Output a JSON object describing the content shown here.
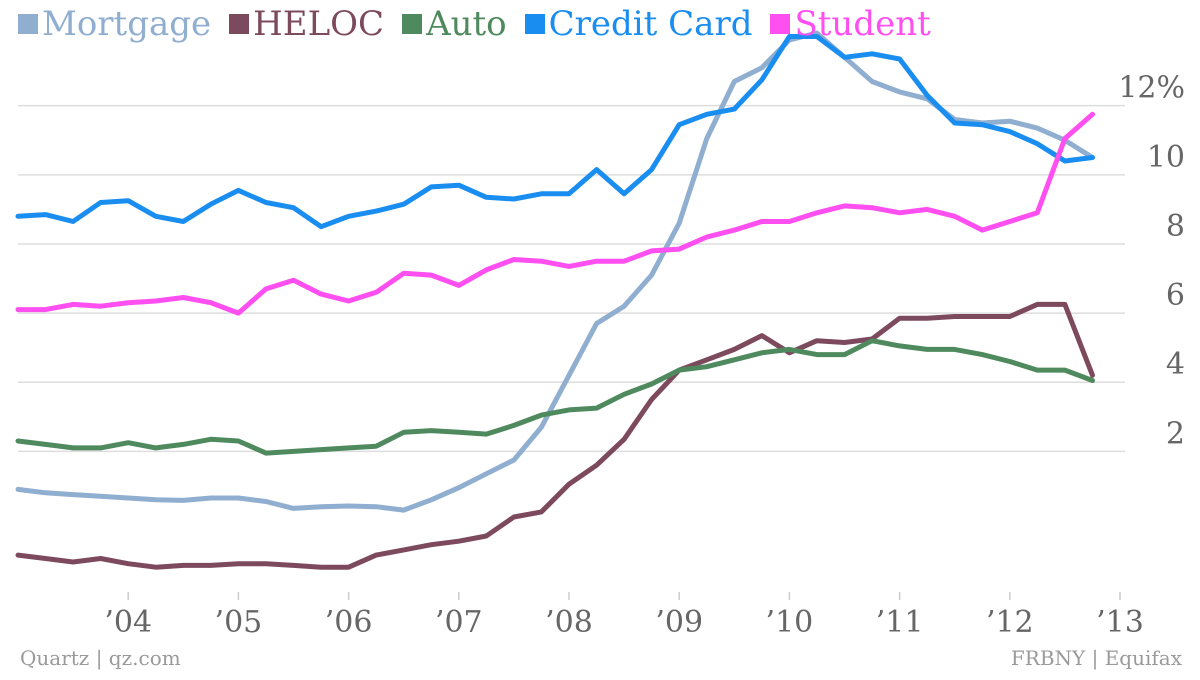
{
  "colors": {
    "mortgage": "#8faed0",
    "heloc": "#7d4a5d",
    "auto": "#4e8a5e",
    "credit_card": "#1a8ef0",
    "student": "#ff4ff0",
    "grid": "#dddddd",
    "axis_text": "#666666",
    "footer_text": "#9a9a9a"
  },
  "legend": [
    {
      "key": "mortgage",
      "label": "Mortgage"
    },
    {
      "key": "heloc",
      "label": "HELOC"
    },
    {
      "key": "auto",
      "label": "Auto"
    },
    {
      "key": "credit_card",
      "label": "Credit Card"
    },
    {
      "key": "student",
      "label": "Student"
    }
  ],
  "footer": {
    "left": "Quartz | qz.com",
    "right": "FRBNY | Equifax"
  },
  "chart_data": {
    "type": "line",
    "title": "",
    "xlabel": "",
    "ylabel": "",
    "ylim": [
      -2.3,
      13.9
    ],
    "xlim": [
      2003.0,
      2013.6
    ],
    "grid": true,
    "legend_position": "top-left",
    "y_ticks": [
      {
        "value": 2,
        "label": "2"
      },
      {
        "value": 4,
        "label": "4"
      },
      {
        "value": 6,
        "label": "6"
      },
      {
        "value": 8,
        "label": "8"
      },
      {
        "value": 10,
        "label": "10"
      },
      {
        "value": 12,
        "label": "12%"
      }
    ],
    "x_ticks": [
      {
        "value": 2004,
        "label": "’04"
      },
      {
        "value": 2005,
        "label": "’05"
      },
      {
        "value": 2006,
        "label": "’06"
      },
      {
        "value": 2007,
        "label": "’07"
      },
      {
        "value": 2008,
        "label": "’08"
      },
      {
        "value": 2009,
        "label": "’09"
      },
      {
        "value": 2010,
        "label": "’10"
      },
      {
        "value": 2011,
        "label": "’11"
      },
      {
        "value": 2012,
        "label": "’12"
      },
      {
        "value": 2013,
        "label": "’13"
      }
    ],
    "x": [
      2003.0,
      2003.25,
      2003.5,
      2003.75,
      2004.0,
      2004.25,
      2004.5,
      2004.75,
      2005.0,
      2005.25,
      2005.5,
      2005.75,
      2006.0,
      2006.25,
      2006.5,
      2006.75,
      2007.0,
      2007.25,
      2007.5,
      2007.75,
      2008.0,
      2008.25,
      2008.5,
      2008.75,
      2009.0,
      2009.25,
      2009.5,
      2009.75,
      2010.0,
      2010.25,
      2010.5,
      2010.75,
      2011.0,
      2011.25,
      2011.5,
      2011.75,
      2012.0,
      2012.25,
      2012.5,
      2012.75
    ],
    "series": [
      {
        "key": "mortgage",
        "name": "Mortgage",
        "values": [
          0.9,
          0.8,
          0.75,
          0.7,
          0.65,
          0.6,
          0.58,
          0.65,
          0.65,
          0.55,
          0.35,
          0.4,
          0.42,
          0.4,
          0.3,
          0.6,
          0.95,
          1.35,
          1.75,
          2.7,
          4.2,
          5.7,
          6.2,
          7.1,
          8.6,
          11.05,
          12.7,
          13.1,
          13.9,
          14.1,
          13.4,
          12.7,
          12.4,
          12.2,
          11.6,
          11.5,
          11.55,
          11.35,
          11.0,
          10.5
        ]
      },
      {
        "key": "heloc",
        "name": "HELOC",
        "values": [
          -1.0,
          -1.1,
          -1.2,
          -1.1,
          -1.25,
          -1.35,
          -1.3,
          -1.3,
          -1.25,
          -1.25,
          -1.3,
          -1.35,
          -1.35,
          -1.0,
          -0.85,
          -0.7,
          -0.6,
          -0.45,
          0.1,
          0.25,
          1.05,
          1.6,
          2.35,
          3.5,
          4.35,
          4.65,
          4.95,
          5.35,
          4.85,
          5.2,
          5.15,
          5.25,
          5.85,
          5.85,
          5.9,
          5.9,
          5.9,
          6.25,
          6.25,
          4.2
        ]
      },
      {
        "key": "auto",
        "name": "Auto",
        "values": [
          2.3,
          2.2,
          2.1,
          2.1,
          2.25,
          2.1,
          2.2,
          2.35,
          2.3,
          1.95,
          2.0,
          2.05,
          2.1,
          2.15,
          2.55,
          2.6,
          2.55,
          2.5,
          2.75,
          3.05,
          3.2,
          3.25,
          3.65,
          3.95,
          4.35,
          4.45,
          4.65,
          4.85,
          4.95,
          4.8,
          4.8,
          5.2,
          5.05,
          4.95,
          4.95,
          4.8,
          4.6,
          4.35,
          4.35,
          4.05
        ]
      },
      {
        "key": "credit_card",
        "name": "Credit Card",
        "values": [
          8.8,
          8.85,
          8.65,
          9.2,
          9.25,
          8.8,
          8.65,
          9.15,
          9.55,
          9.2,
          9.05,
          8.5,
          8.8,
          8.95,
          9.15,
          9.65,
          9.7,
          9.35,
          9.3,
          9.45,
          9.45,
          10.15,
          9.45,
          10.15,
          11.45,
          11.75,
          11.9,
          12.75,
          14.0,
          14.0,
          13.4,
          13.5,
          13.35,
          12.3,
          11.5,
          11.45,
          11.25,
          10.9,
          10.4,
          10.5
        ]
      },
      {
        "key": "student",
        "name": "Student",
        "values": [
          6.1,
          6.1,
          6.25,
          6.2,
          6.3,
          6.35,
          6.45,
          6.3,
          6.0,
          6.7,
          6.95,
          6.55,
          6.35,
          6.6,
          7.15,
          7.1,
          6.8,
          7.25,
          7.55,
          7.5,
          7.35,
          7.5,
          7.5,
          7.8,
          7.85,
          8.2,
          8.4,
          8.65,
          8.65,
          8.9,
          9.1,
          9.05,
          8.9,
          9.0,
          8.8,
          8.4,
          8.65,
          8.9,
          11.05,
          11.75
        ]
      }
    ]
  }
}
